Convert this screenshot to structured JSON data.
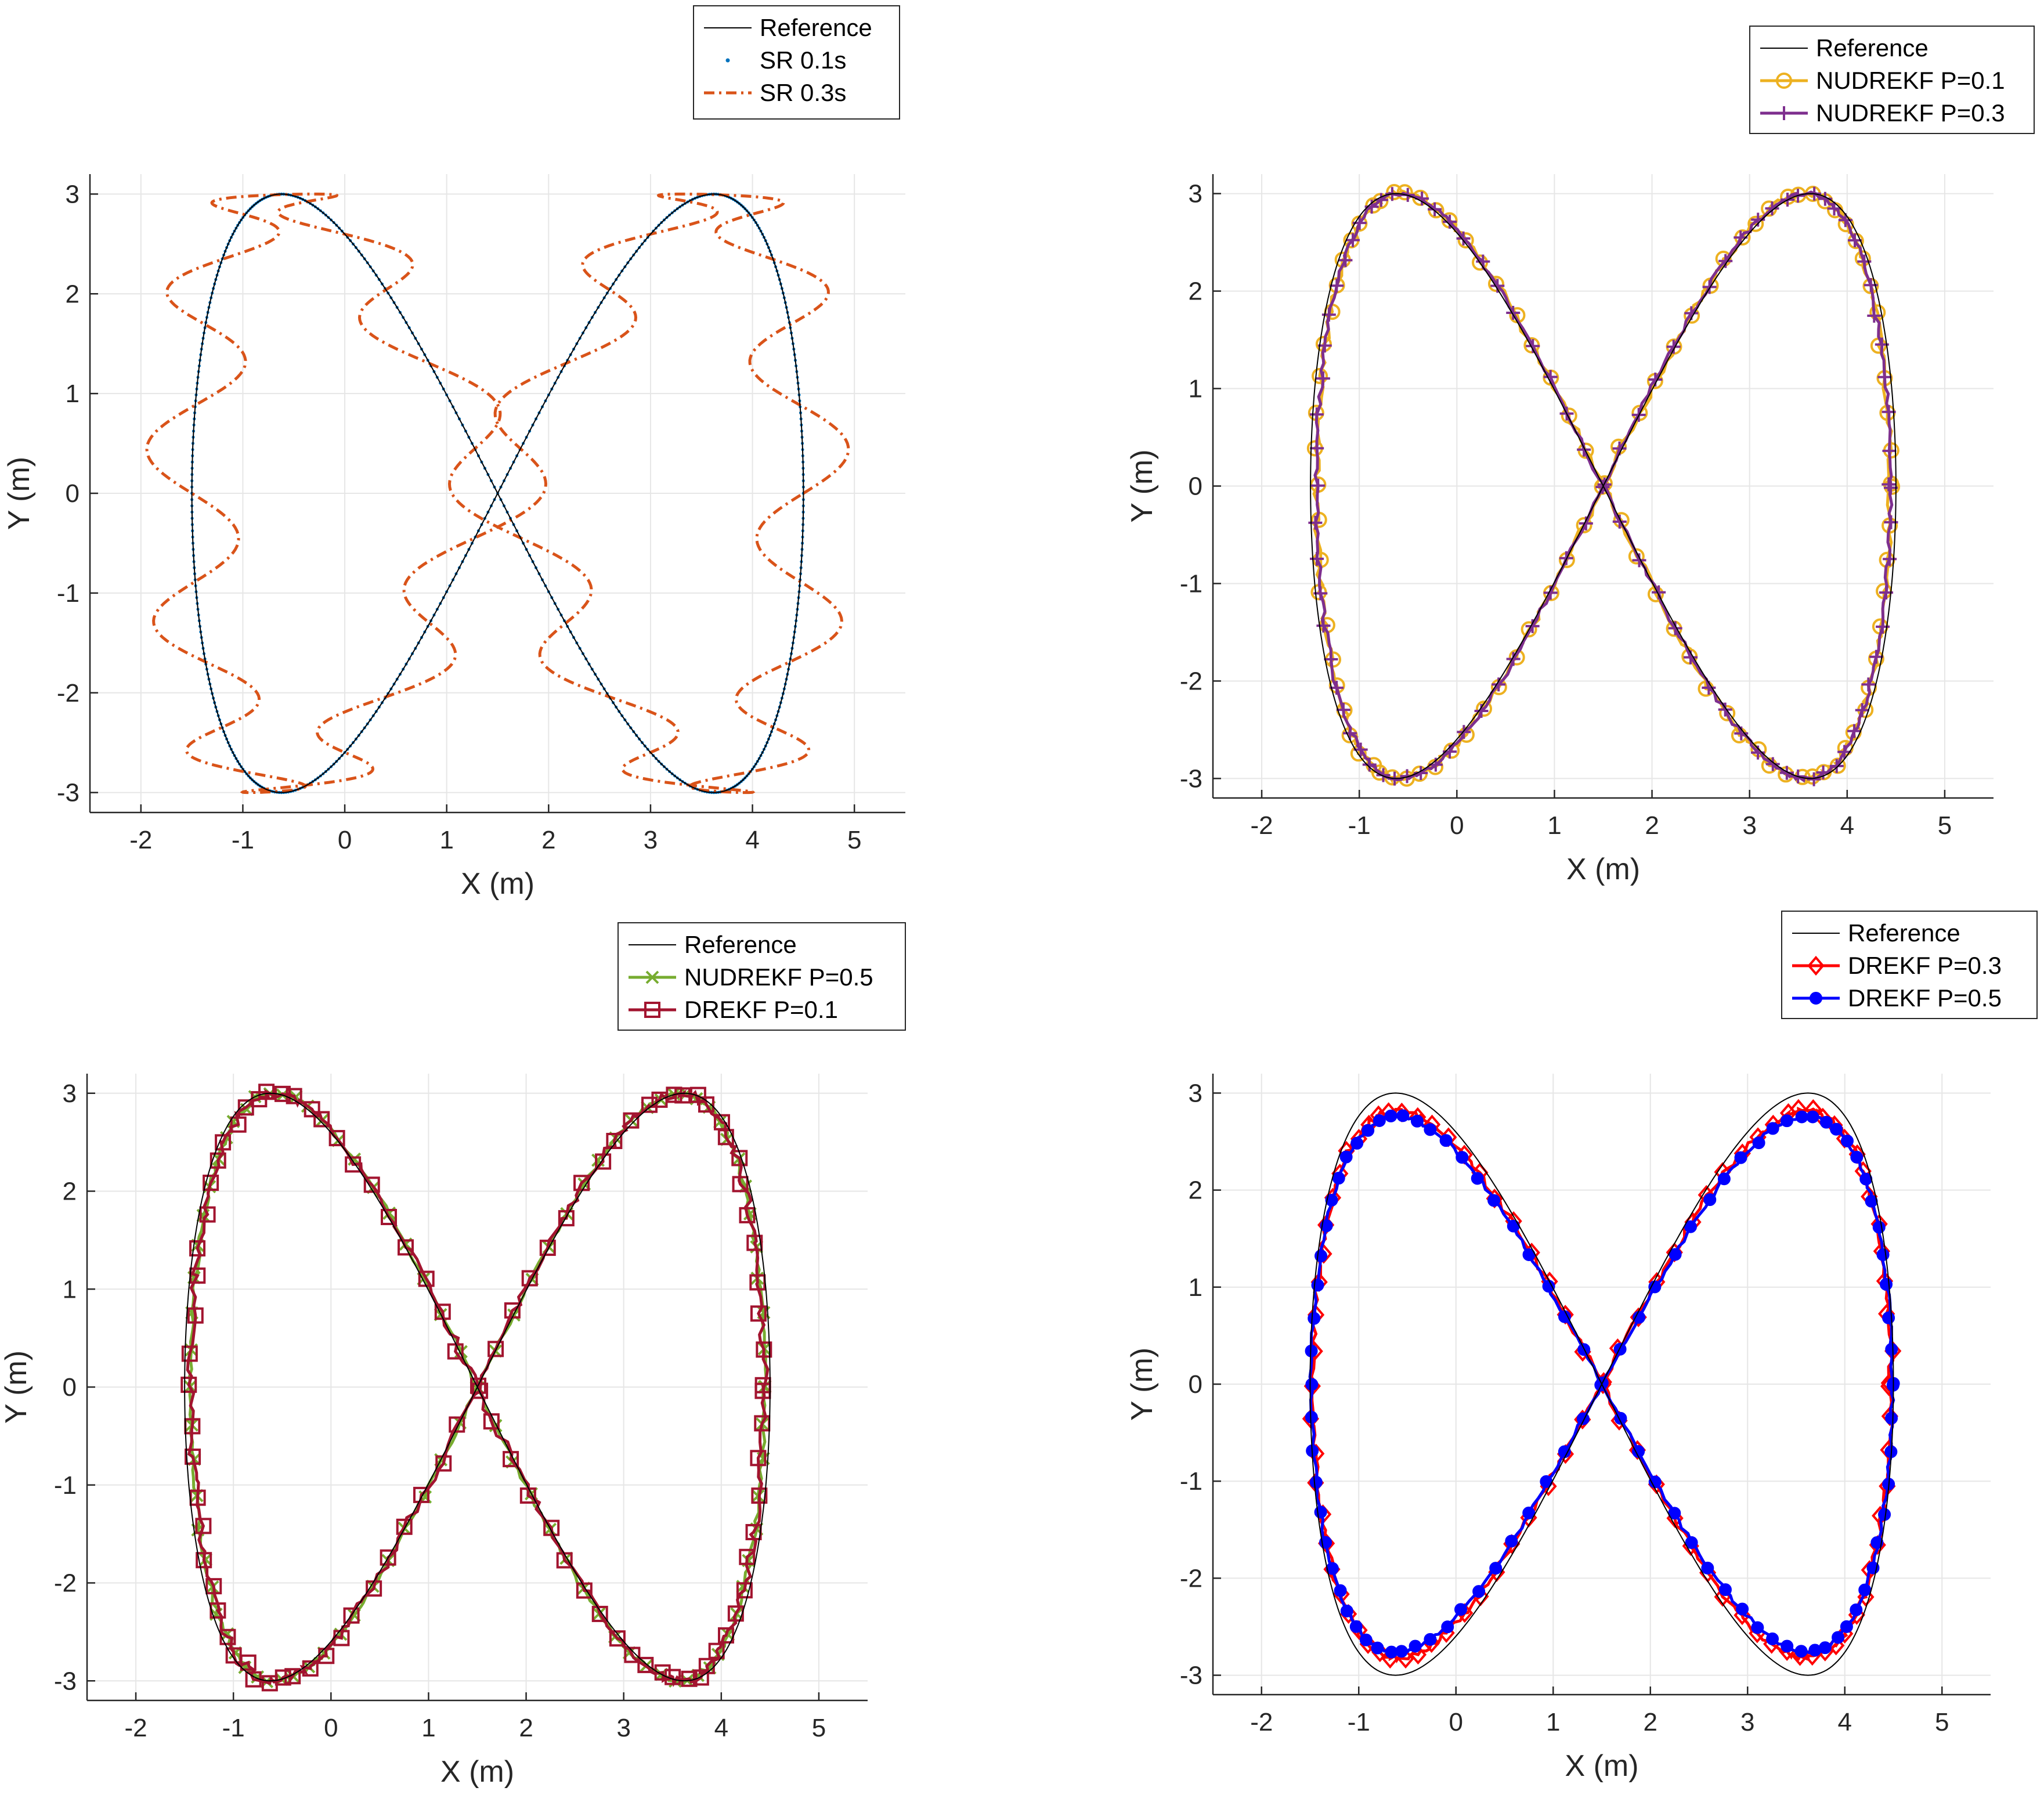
{
  "chart_data": [
    {
      "type": "line",
      "xlabel": "X (m)",
      "ylabel": "Y (m)",
      "xlim": [
        -2.5,
        5.5
      ],
      "ylim": [
        -3.2,
        3.2
      ],
      "xticks": [
        -2,
        -1,
        0,
        1,
        2,
        3,
        4,
        5
      ],
      "yticks": [
        -3,
        -2,
        -1,
        0,
        1,
        2,
        3
      ],
      "grid": true,
      "legend_position": "top-right, above axes",
      "series": [
        {
          "name": "Reference",
          "color": "#000000",
          "style": "thin-solid",
          "kind": "reference"
        },
        {
          "name": "SR 0.1s",
          "color": "#0072BD",
          "style": "dots",
          "kind": "dense_dots"
        },
        {
          "name": "SR 0.3s",
          "color": "#D95319",
          "style": "dash-dot",
          "kind": "oscillating",
          "osc_amplitude": 0.45,
          "osc_cycles": 21
        }
      ]
    },
    {
      "type": "line",
      "xlabel": "X (m)",
      "ylabel": "Y (m)",
      "xlim": [
        -2.5,
        5.5
      ],
      "ylim": [
        -3.2,
        3.2
      ],
      "xticks": [
        -2,
        -1,
        0,
        1,
        2,
        3,
        4,
        5
      ],
      "yticks": [
        -3,
        -2,
        -1,
        0,
        1,
        2,
        3
      ],
      "grid": true,
      "legend_position": "top-right, above axes",
      "series": [
        {
          "name": "Reference",
          "color": "#000000",
          "style": "thin-solid",
          "kind": "reference"
        },
        {
          "name": "NUDREKF P=0.1",
          "color": "#EDB120",
          "marker": "circle",
          "kind": "noisy",
          "noise": 0.06,
          "seed": 11
        },
        {
          "name": "NUDREKF P=0.3",
          "color": "#7E2F8E",
          "marker": "plus",
          "kind": "noisy",
          "noise": 0.04,
          "seed": 23
        }
      ]
    },
    {
      "type": "line",
      "xlabel": "X (m)",
      "ylabel": "Y (m)",
      "xlim": [
        -2.5,
        5.5
      ],
      "ylim": [
        -3.2,
        3.2
      ],
      "xticks": [
        -2,
        -1,
        0,
        1,
        2,
        3,
        4,
        5
      ],
      "yticks": [
        -3,
        -2,
        -1,
        0,
        1,
        2,
        3
      ],
      "grid": true,
      "legend_position": "top-right, above axes",
      "series": [
        {
          "name": "Reference",
          "color": "#000000",
          "style": "thin-solid",
          "kind": "reference"
        },
        {
          "name": "NUDREKF P=0.5",
          "color": "#77AC30",
          "marker": "x",
          "kind": "noisy",
          "noise": 0.04,
          "seed": 37
        },
        {
          "name": "DREKF P=0.1",
          "color": "#A2142F",
          "marker": "square",
          "kind": "noisy",
          "noise": 0.08,
          "seed": 53
        }
      ]
    },
    {
      "type": "line",
      "xlabel": "X (m)",
      "ylabel": "Y (m)",
      "xlim": [
        -2.5,
        5.5
      ],
      "ylim": [
        -3.2,
        3.2
      ],
      "xticks": [
        -2,
        -1,
        0,
        1,
        2,
        3,
        4,
        5
      ],
      "yticks": [
        -3,
        -2,
        -1,
        0,
        1,
        2,
        3
      ],
      "grid": true,
      "legend_position": "top-right, above axes",
      "series": [
        {
          "name": "Reference",
          "color": "#000000",
          "style": "thin-solid",
          "kind": "reference"
        },
        {
          "name": "DREKF P=0.3",
          "color": "#FF0000",
          "marker": "diamond",
          "kind": "shrunk",
          "shrink": 0.94,
          "noise": 0.05,
          "seed": 71
        },
        {
          "name": "DREKF P=0.5",
          "color": "#0000FF",
          "marker": "dot",
          "kind": "shrunk",
          "shrink": 0.92,
          "noise": 0.03,
          "seed": 89
        }
      ]
    }
  ]
}
